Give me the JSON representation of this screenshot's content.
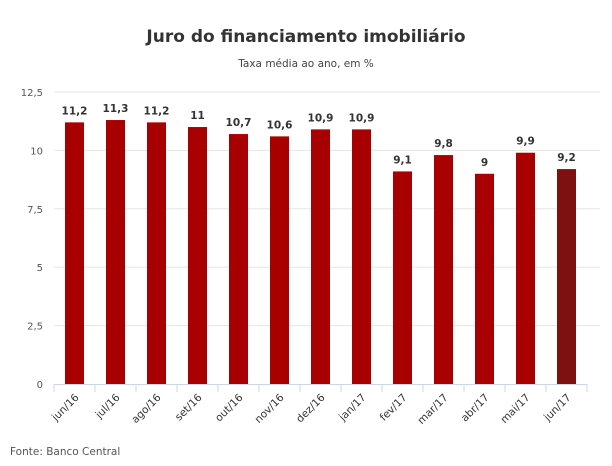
{
  "chart_data": {
    "type": "bar",
    "title": "Juro do financiamento imobiliário",
    "subtitle": "Taxa média ao ano, em %",
    "source": "Fonte: Banco Central",
    "categories": [
      "jun/16",
      "jul/16",
      "ago/16",
      "set/16",
      "out/16",
      "nov/16",
      "dez/16",
      "jan/17",
      "fev/17",
      "mar/17",
      "abr/17",
      "mai/17",
      "jun/17"
    ],
    "values": [
      11.2,
      11.3,
      11.2,
      11,
      10.7,
      10.6,
      10.9,
      10.9,
      9.1,
      9.8,
      9,
      9.9,
      9.2
    ],
    "data_labels": [
      "11,2",
      "11,3",
      "11,2",
      "11",
      "10,7",
      "10,6",
      "10,9",
      "10,9",
      "9,1",
      "9,8",
      "9",
      "9,9",
      "9,2"
    ],
    "yticks": [
      "0",
      "2,5",
      "5",
      "7,5",
      "10",
      "12,5"
    ],
    "ylim": [
      0,
      12.5
    ],
    "xlabel": "",
    "ylabel": "",
    "grid": true,
    "colors": {
      "bar": "#a80000",
      "highlight": "#7d1010",
      "grid": "#e6e6e6"
    }
  }
}
